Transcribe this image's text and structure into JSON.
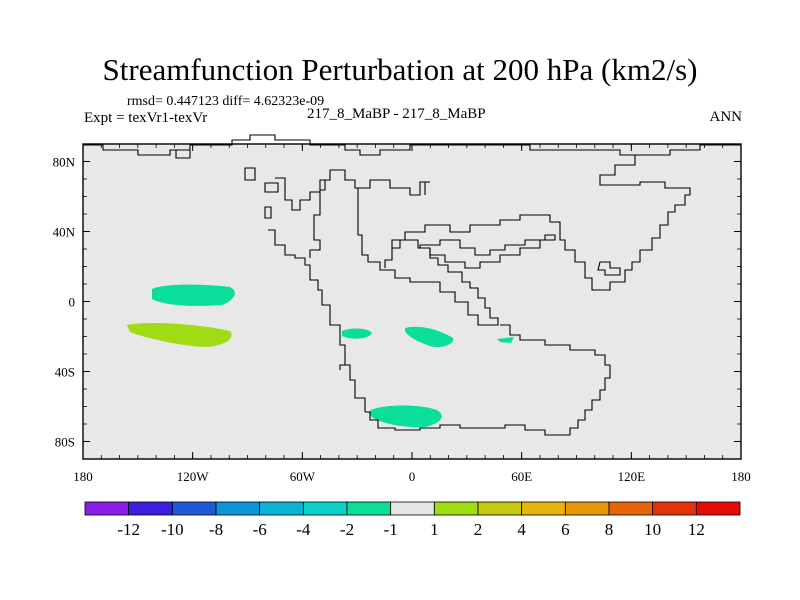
{
  "chart_data": {
    "type": "contour-map",
    "title": "Streamfunction Perturbation at 200 hPa (km2/s)",
    "subtitle_stats": "rmsd= 0.447123 diff= 4.62323e-09",
    "left_label": "Expt = texVr1-texVr",
    "center_label": "217_8_MaBP - 217_8_MaBP",
    "right_label": "ANN",
    "x_axis": {
      "range": [
        -180,
        180
      ],
      "ticks": [
        -180,
        -120,
        -60,
        0,
        60,
        120,
        180
      ],
      "tick_labels": [
        "180",
        "120W",
        "60W",
        "0",
        "60E",
        "120E",
        "180"
      ]
    },
    "y_axis": {
      "range": [
        -90,
        90
      ],
      "ticks": [
        -80,
        -40,
        0,
        40,
        80
      ],
      "tick_labels": [
        "80S",
        "40S",
        "0",
        "40N",
        "80N"
      ]
    },
    "background_color": "#e8e8e8",
    "colorbar": {
      "colors": [
        "#8a1ee6",
        "#3c1ee0",
        "#1e5ad7",
        "#0a96d7",
        "#0ab4d2",
        "#0ad2c8",
        "#0ade9b",
        "#e6e6e6",
        "#a0dc14",
        "#c8c814",
        "#e6b40a",
        "#e6960a",
        "#e6640a",
        "#e6320a",
        "#e60a0a"
      ],
      "labels": [
        "-12",
        "-10",
        "-8",
        "-6",
        "-4",
        "-2",
        "-1",
        "1",
        "2",
        "4",
        "6",
        "8",
        "10",
        "12"
      ]
    },
    "anomalies": [
      {
        "lon": -122,
        "lat": 0,
        "color": "#0ade9b",
        "value_band": "-2 to -1"
      },
      {
        "lon": -125,
        "lat": -22,
        "color": "#a0dc14",
        "value_band": "1 to 2"
      },
      {
        "lon": -30,
        "lat": -21,
        "color": "#0ade9b",
        "value_band": "-2 to -1"
      },
      {
        "lon": 8,
        "lat": -22,
        "color": "#0ade9b",
        "value_band": "-2 to -1"
      },
      {
        "lon": 52,
        "lat": -25,
        "color": "#0ade9b",
        "value_band": "-2 to -1"
      },
      {
        "lon": -3,
        "lat": -68,
        "color": "#0ade9b",
        "value_band": "-2 to -1"
      }
    ]
  }
}
